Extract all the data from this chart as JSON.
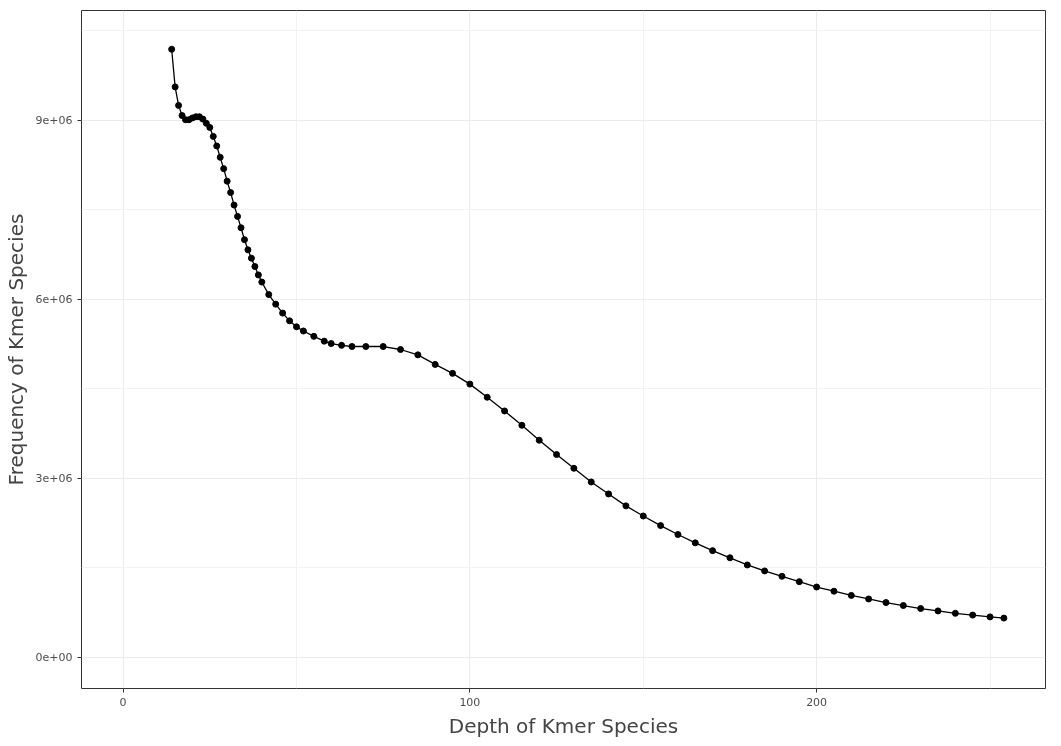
{
  "chart_data": {
    "type": "line",
    "xlabel": "Depth of Kmer Species",
    "ylabel": "Frequency of Kmer Species",
    "xlim": [
      -12,
      266
    ],
    "ylim": [
      -520000,
      10840000
    ],
    "xticks": [
      0,
      100,
      200
    ],
    "yticks": [
      {
        "value": 0,
        "label": "0e+00"
      },
      {
        "value": 3000000,
        "label": "3e+06"
      },
      {
        "value": 6000000,
        "label": "6e+06"
      },
      {
        "value": 9000000,
        "label": "9e+06"
      }
    ],
    "grid": true,
    "marker": "circle",
    "line_style": "solid",
    "series": [
      {
        "color": "#000000",
        "x": [
          14,
          15,
          16,
          17,
          18,
          19,
          20,
          21,
          22,
          23,
          24,
          25,
          26,
          27,
          28,
          29,
          30,
          31,
          32,
          33,
          34,
          35,
          36,
          37,
          38,
          39,
          40,
          42,
          44,
          46,
          48,
          50,
          52,
          55,
          58,
          60,
          63,
          66,
          70,
          75,
          80,
          85,
          90,
          95,
          100,
          105,
          110,
          115,
          120,
          125,
          130,
          135,
          140,
          145,
          150,
          155,
          160,
          165,
          170,
          175,
          180,
          185,
          190,
          195,
          200,
          205,
          210,
          215,
          220,
          225,
          230,
          235,
          240,
          245,
          250,
          254
        ],
        "values": [
          10190000,
          9560000,
          9250000,
          9080000,
          9010000,
          9010000,
          9040000,
          9060000,
          9060000,
          9020000,
          8950000,
          8880000,
          8730000,
          8570000,
          8380000,
          8190000,
          7980000,
          7790000,
          7580000,
          7390000,
          7200000,
          7000000,
          6830000,
          6690000,
          6550000,
          6410000,
          6290000,
          6080000,
          5920000,
          5770000,
          5640000,
          5540000,
          5470000,
          5380000,
          5300000,
          5260000,
          5230000,
          5210000,
          5210000,
          5210000,
          5160000,
          5070000,
          4910000,
          4760000,
          4580000,
          4360000,
          4130000,
          3890000,
          3640000,
          3400000,
          3170000,
          2940000,
          2740000,
          2540000,
          2370000,
          2210000,
          2060000,
          1920000,
          1790000,
          1670000,
          1550000,
          1450000,
          1360000,
          1270000,
          1180000,
          1110000,
          1040000,
          980000,
          920000,
          870000,
          820000,
          780000,
          740000,
          710000,
          680000,
          660000
        ]
      }
    ]
  }
}
